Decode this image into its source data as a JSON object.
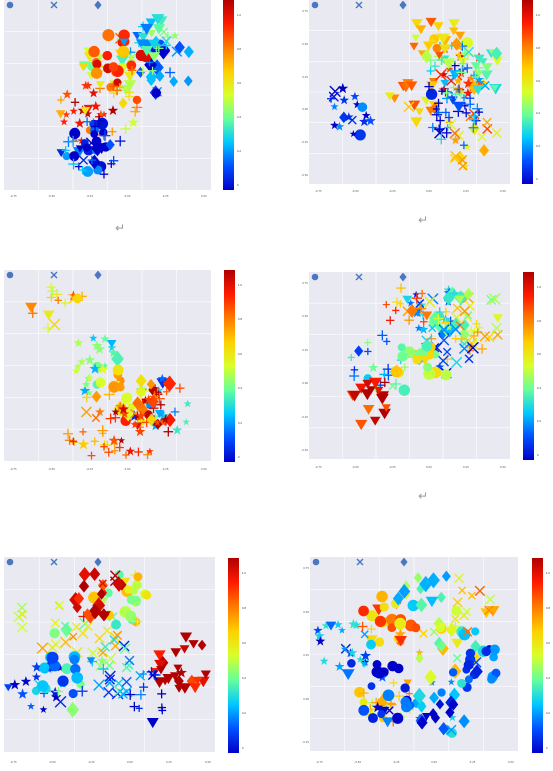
{
  "colors": {
    "plot_bg": "#e9e9f2",
    "legend_marker": "#4a78c0",
    "colormap": [
      "#0000c8",
      "#0050ff",
      "#00c8ff",
      "#66ff99",
      "#d8ff2a",
      "#ffd000",
      "#ff7a00",
      "#ff1a00",
      "#b00000"
    ]
  },
  "return_symbol": "↵",
  "chart_data": [
    {
      "type": "scatter",
      "id": "tl",
      "legend": [
        "",
        "",
        ""
      ],
      "colorbar_ticks": [
        "1.0",
        "0.8",
        "0.6",
        "0.4",
        "0.2",
        "0"
      ],
      "x_ticks": [
        "-0.75",
        "-0.50",
        "-0.25",
        "0.00",
        "0.25",
        "0.50"
      ],
      "y_ticks": [],
      "grid": true,
      "legend_placement": "top-left",
      "has_return_symbol": true,
      "series": [
        {
          "seed": 11
        }
      ]
    },
    {
      "type": "scatter",
      "id": "tr",
      "legend": [
        "",
        "",
        ""
      ],
      "colorbar_ticks": [
        "1.0",
        "0.8",
        "0.6",
        "0.4",
        "0.2",
        "0"
      ],
      "x_ticks": [
        "-0.75",
        "-0.50",
        "-0.25",
        "0.00",
        "0.25",
        "0.50"
      ],
      "y_ticks": [
        "0.75",
        "0.50",
        "0.25",
        "0.00",
        "-0.25",
        "-0.50"
      ],
      "grid": true,
      "legend_placement": "top-left",
      "has_return_symbol": true,
      "series": [
        {
          "seed": 23
        }
      ]
    },
    {
      "type": "scatter",
      "id": "ml",
      "legend": [
        "",
        "",
        ""
      ],
      "colorbar_ticks": [
        "1.0",
        "0.8",
        "0.6",
        "0.4",
        "0.2",
        "0"
      ],
      "x_ticks": [
        "-0.75",
        "-0.50",
        "-0.25",
        "0.00",
        "0.25",
        "0.50"
      ],
      "y_ticks": [],
      "grid": true,
      "legend_placement": "top-left",
      "has_return_symbol": false,
      "series": [
        {
          "seed": 37
        }
      ]
    },
    {
      "type": "scatter",
      "id": "mr",
      "legend": [
        "",
        "",
        ""
      ],
      "colorbar_ticks": [
        "1.0",
        "0.8",
        "0.6",
        "0.4",
        "0.2",
        "0"
      ],
      "x_ticks": [
        "-0.75",
        "-0.50",
        "-0.25",
        "0.00",
        "0.25",
        "0.50"
      ],
      "y_ticks": [
        "0.75",
        "0.50",
        "0.25",
        "0.00",
        "-0.25",
        "-0.50"
      ],
      "grid": true,
      "legend_placement": "top-left",
      "has_return_symbol": true,
      "series": [
        {
          "seed": 41
        }
      ]
    },
    {
      "type": "scatter",
      "id": "bl",
      "legend": [
        "",
        "",
        ""
      ],
      "colorbar_ticks": [
        "1.0",
        "0.8",
        "0.6",
        "0.4",
        "0.2",
        "0"
      ],
      "x_ticks": [
        "-0.75",
        "-0.50",
        "-0.25",
        "0.00",
        "0.25",
        "0.50"
      ],
      "y_ticks": [],
      "grid": true,
      "legend_placement": "top-left",
      "has_return_symbol": false,
      "series": [
        {
          "seed": 53
        }
      ]
    },
    {
      "type": "scatter",
      "id": "br",
      "legend": [
        "",
        "",
        ""
      ],
      "colorbar_ticks": [
        "1.0",
        "0.8",
        "0.6",
        "0.4",
        "0.2",
        "0"
      ],
      "x_ticks": [
        "-0.75",
        "-0.50",
        "-0.25",
        "0.00",
        "0.25",
        "0.50"
      ],
      "y_ticks": [
        "0.75",
        "0.50",
        "0.25",
        "0.00",
        "-0.25"
      ],
      "grid": true,
      "legend_placement": "top-left",
      "has_return_symbol": false,
      "series": [
        {
          "seed": 67
        }
      ]
    }
  ]
}
